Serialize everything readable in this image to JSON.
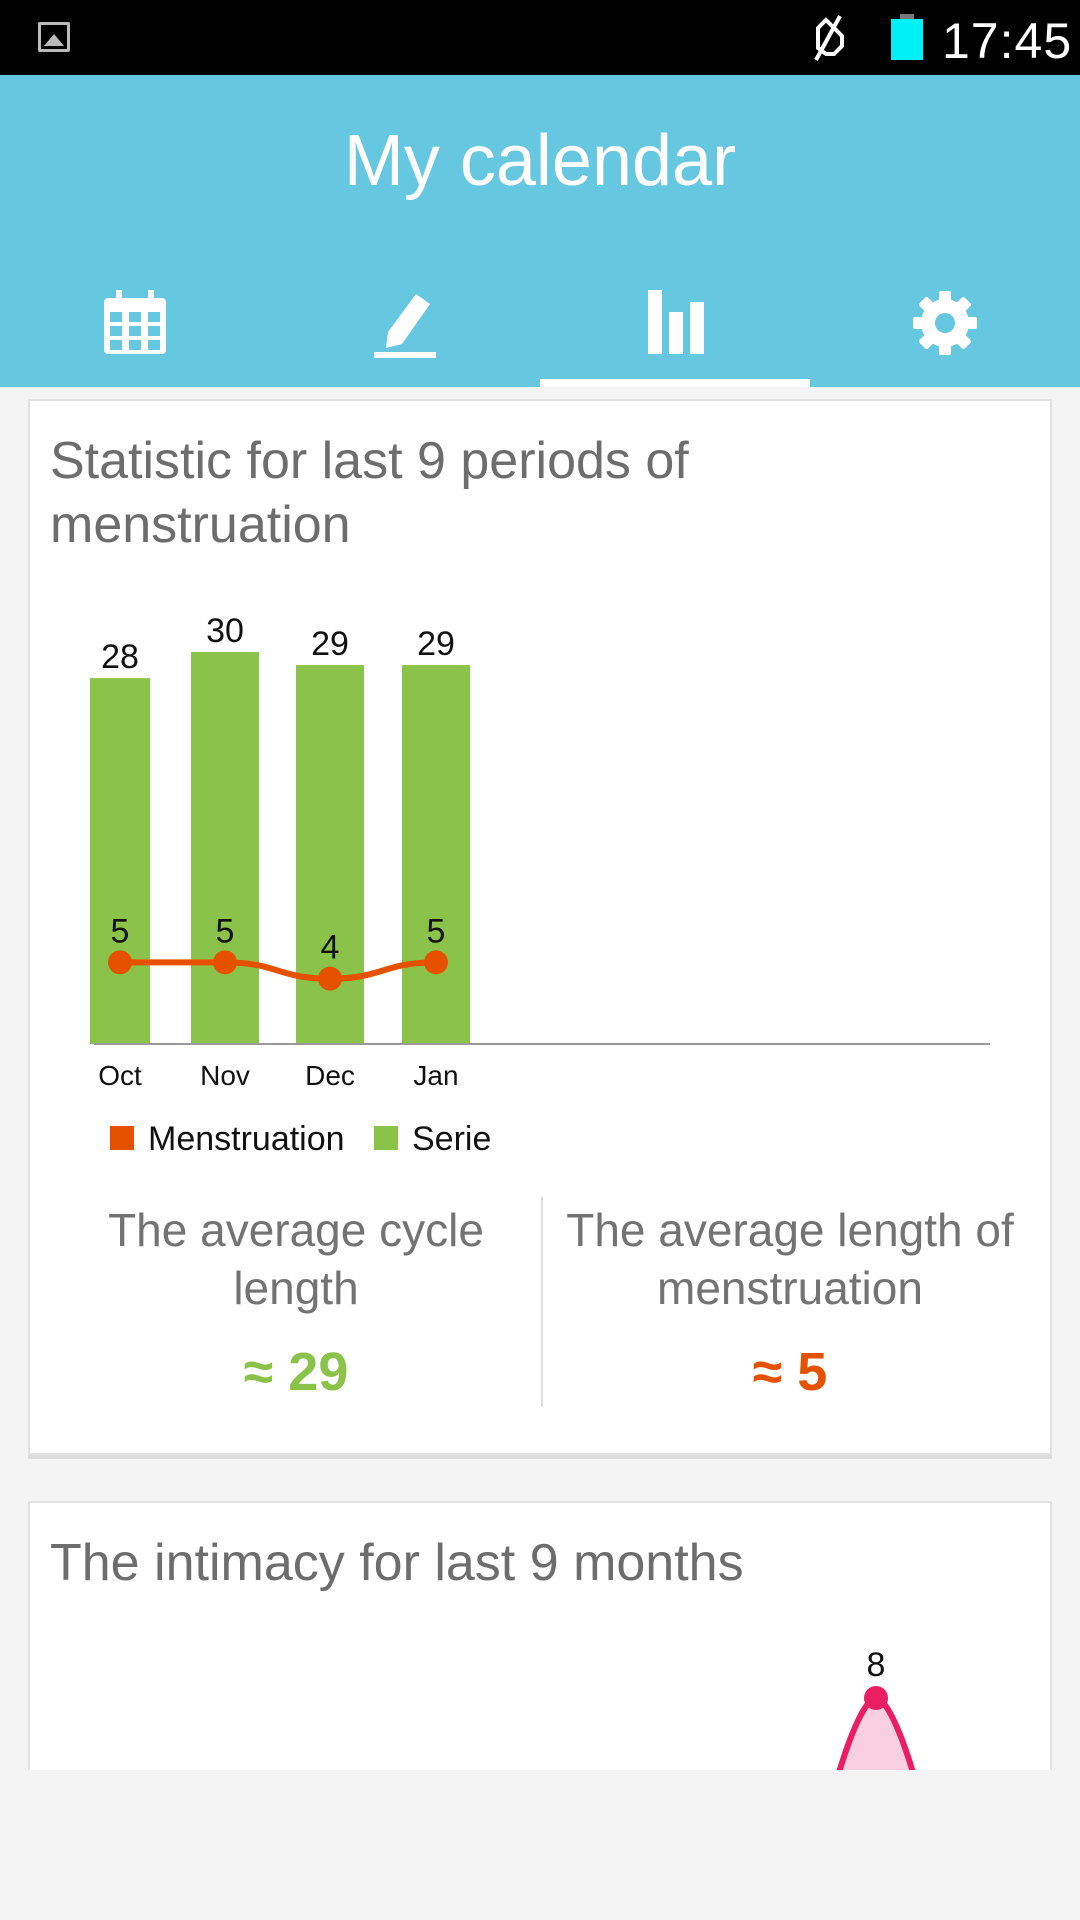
{
  "statusbar": {
    "time": "17:45"
  },
  "app": {
    "title": "My calendar"
  },
  "tabs": [
    {
      "name": "calendar",
      "icon": "calendar-icon",
      "active": false
    },
    {
      "name": "edit",
      "icon": "pen-icon",
      "active": false
    },
    {
      "name": "statistics",
      "icon": "bar-chart-icon",
      "active": true
    },
    {
      "name": "settings",
      "icon": "gear-icon",
      "active": false
    }
  ],
  "card1": {
    "title": "Statistic for last 9 periods of menstruation",
    "avg_cycle": {
      "label": "The average cycle length",
      "value": "≈ 29",
      "color": "#8bc34a"
    },
    "avg_menstruation": {
      "label": "The average length of menstruation",
      "value": "≈ 5",
      "color": "#e65100"
    }
  },
  "chart_data": [
    {
      "type": "bar",
      "categories": [
        "Oct",
        "Nov",
        "Dec",
        "Jan"
      ],
      "series": [
        {
          "name": "Serie",
          "type": "bar",
          "color": "#8bc34a",
          "values": [
            28,
            30,
            29,
            29
          ]
        },
        {
          "name": "Menstruation",
          "type": "line",
          "color": "#e65100",
          "values": [
            5,
            5,
            4,
            5
          ]
        }
      ],
      "legend": [
        "Menstruation",
        "Serie"
      ],
      "legend_position": "bottom-left",
      "ylim": [
        0,
        30
      ],
      "grid": false
    },
    {
      "type": "line",
      "title": "The intimacy for last 9 months",
      "series": [
        {
          "name": "",
          "color": "#e91e63",
          "values": [
            8
          ]
        }
      ],
      "data_labels": [
        "8"
      ]
    }
  ],
  "card2": {
    "title": "The intimacy for last 9 months",
    "peak_label": "8"
  }
}
